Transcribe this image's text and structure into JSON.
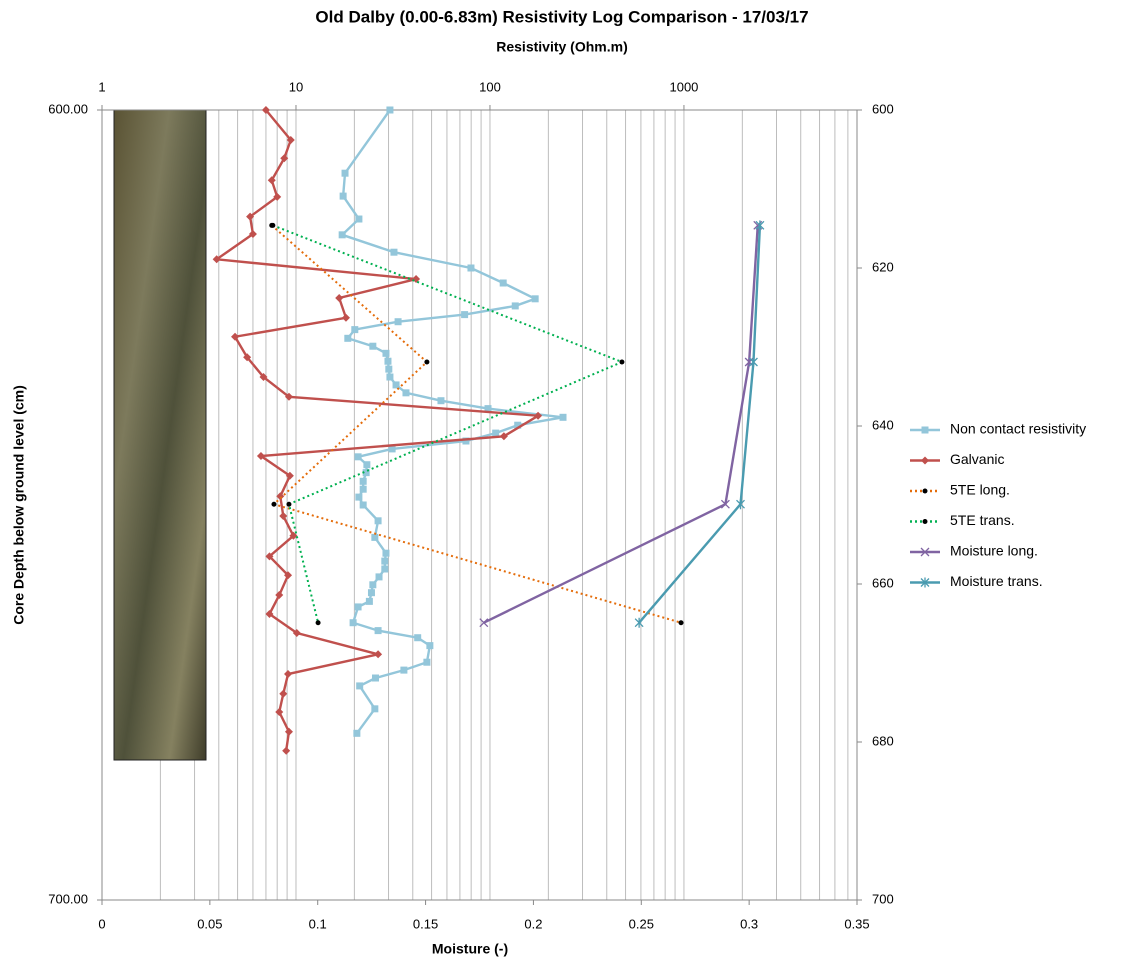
{
  "chart_data": {
    "type": "line",
    "title": "Old Dalby (0.00-6.83m) Resistivity Log Comparison - 17/03/17",
    "x2_label": "Resistivity  (Ohm.m)",
    "x_label": "Moisture  (-)",
    "y_label": "Core Depth below ground level (cm)",
    "xlim": [
      0,
      0.35
    ],
    "xticks": [
      0,
      0.05,
      0.1,
      0.15,
      0.2,
      0.25,
      0.3,
      0.35
    ],
    "x2lim": [
      1,
      7800
    ],
    "x2scale": "log",
    "x2ticks": [
      1,
      10,
      100,
      1000
    ],
    "x2minor_grid": [
      2,
      3,
      4,
      5,
      6,
      7,
      8,
      9,
      20,
      30,
      40,
      50,
      60,
      70,
      80,
      90,
      200,
      300,
      400,
      500,
      600,
      700,
      800,
      900,
      2000,
      3000,
      4000,
      5000,
      6000,
      7000
    ],
    "ylim": [
      600,
      700
    ],
    "y_reversed": true,
    "yticks": [
      {
        "value": 600,
        "label": "600.00"
      },
      {
        "value": 700,
        "label": "700.00"
      }
    ],
    "y2ticks": [
      600,
      620,
      640,
      660,
      680,
      700
    ],
    "legend": "right",
    "series": [
      {
        "name": "Non contact resistivity",
        "color": "#93c6da",
        "axis": "x2",
        "marker": "square",
        "line_style": "solid",
        "depth": [
          600,
          608,
          610.9,
          613.8,
          615.8,
          618,
          620,
          621.9,
          623.9,
          624.8,
          625.9,
          626.8,
          627.8,
          628.9,
          629.9,
          630.8,
          631.8,
          632.8,
          633.8,
          634.8,
          635.8,
          636.8,
          637.8,
          638.9,
          639.9,
          640.9,
          641.9,
          642.9,
          643.9,
          644.9,
          645.9,
          647,
          648,
          649,
          650,
          652,
          654.1,
          656.1,
          657.1,
          658.1,
          659.1,
          660.1,
          661.1,
          662.2,
          662.9,
          664.9,
          665.9,
          666.8,
          667.8,
          669.9,
          670.9,
          671.9,
          672.9,
          675.8,
          678.9
        ],
        "values": [
          30.5,
          17.9,
          17.5,
          21.1,
          17.3,
          32,
          79.8,
          117,
          171,
          135,
          74,
          33.6,
          20.1,
          18.5,
          24.9,
          29.1,
          29.8,
          30.1,
          30.5,
          32.8,
          36.9,
          55.9,
          97.7,
          238,
          139,
          107,
          75.2,
          31.3,
          20.9,
          23.2,
          23,
          22.2,
          22.2,
          21.1,
          22.2,
          26.5,
          25.5,
          29.1,
          28.7,
          28.7,
          26.8,
          24.9,
          24.5,
          23.9,
          20.9,
          19.7,
          26.5,
          42.4,
          49,
          47.3,
          36,
          25.7,
          21.3,
          25.5,
          20.6
        ]
      },
      {
        "name": "Galvanic",
        "color": "#c0504d",
        "axis": "x2",
        "marker": "diamond",
        "line_style": "solid",
        "depth": [
          600,
          603.8,
          606.1,
          608.9,
          611,
          613.5,
          615.7,
          618.9,
          621.4,
          623.8,
          626.3,
          628.7,
          631.3,
          633.8,
          636.3,
          638.7,
          641.3,
          643.8,
          646.3,
          648.9,
          651.4,
          653.9,
          656.5,
          658.9,
          661.4,
          663.8,
          666.2,
          668.9,
          671.4,
          673.9,
          676.2,
          678.7,
          681.1
        ],
        "values": [
          7,
          9.4,
          8.7,
          7.5,
          8,
          5.8,
          6,
          3.9,
          41.6,
          16.7,
          18.1,
          4.85,
          5.6,
          6.8,
          9.2,
          177,
          118,
          6.6,
          9.3,
          8.3,
          8.6,
          9.7,
          7.3,
          9.1,
          8.2,
          7.3,
          10.1,
          26.5,
          9.1,
          8.6,
          8.2,
          9.2,
          8.9
        ]
      },
      {
        "name": "5TE long.",
        "color": "#e46c0a",
        "marker_color": "#000000",
        "axis": "x2",
        "marker": "dot",
        "line_style": "dotted",
        "depth": [
          614.6,
          631.9,
          649.9,
          664.9
        ],
        "values": [
          7.5,
          47.3,
          7.7,
          966
        ]
      },
      {
        "name": "5TE trans.",
        "color": "#00b050",
        "marker_color": "#000000",
        "axis": "x2",
        "marker": "dot",
        "line_style": "dotted",
        "depth": [
          614.6,
          631.9,
          649.9,
          664.9
        ],
        "values": [
          7.6,
          479,
          9.2,
          13
        ]
      },
      {
        "name": "Moisture long.",
        "color": "#8064a2",
        "axis": "x",
        "marker": "x",
        "line_style": "solid",
        "depth": [
          614.6,
          631.9,
          649.9,
          664.9
        ],
        "values": [
          0.304,
          0.3,
          0.289,
          0.177
        ]
      },
      {
        "name": "Moisture trans.",
        "color": "#4a9bb0",
        "axis": "x",
        "marker": "star",
        "line_style": "solid",
        "depth": [
          614.6,
          631.9,
          649.9,
          664.9
        ],
        "values": [
          0.305,
          0.302,
          0.296,
          0.249
        ]
      }
    ]
  }
}
